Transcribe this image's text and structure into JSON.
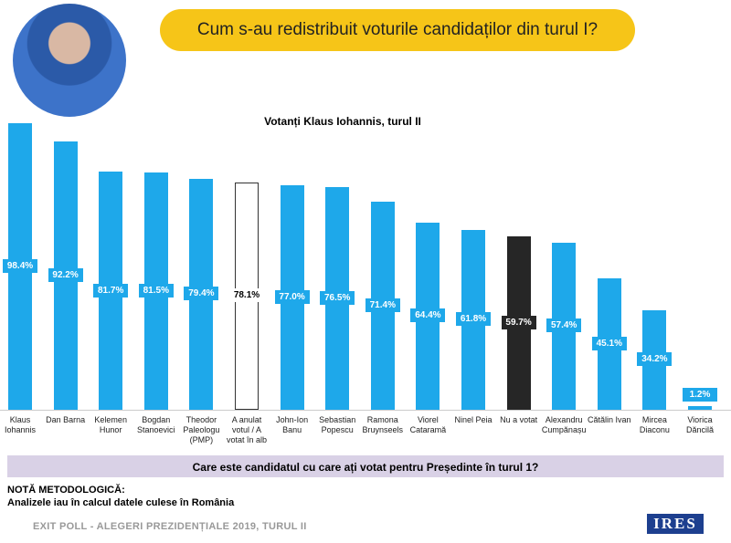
{
  "chart_data": {
    "type": "bar",
    "title": "Cum s-au redistribuit voturile candidaților din turul I?",
    "subtitle": "Votanți Klaus Iohannis, turul II",
    "x_label": "Care este candidatul cu care ați votat pentru Președinte în turul 1?",
    "categories": [
      "Klaus Iohannis",
      "Dan Barna",
      "Kelemen Hunor",
      "Bogdan Stanoevici",
      "Theodor Paleologu (PMP)",
      "A anulat votul / A votat în alb",
      "John-Ion Banu",
      "Sebastian Popescu",
      "Ramona Bruynseels",
      "Viorel Cataramă",
      "Ninel Peia",
      "Nu a votat",
      "Alexandru Cumpănașu",
      "Cătălin Ivan",
      "Mircea Diaconu",
      "Viorica Dăncilă"
    ],
    "values": [
      98.4,
      92.2,
      81.7,
      81.5,
      79.4,
      78.1,
      77.0,
      76.5,
      71.4,
      64.4,
      61.8,
      59.7,
      57.4,
      45.1,
      34.2,
      1.2
    ],
    "value_labels": [
      "98.4%",
      "92.2%",
      "81.7%",
      "81.5%",
      "79.4%",
      "78.1%",
      "77.0%",
      "76.5%",
      "71.4%",
      "64.4%",
      "61.8%",
      "59.7%",
      "57.4%",
      "45.1%",
      "34.2%",
      "1.2%"
    ],
    "colors": [
      "#1ea8ea",
      "#1ea8ea",
      "#1ea8ea",
      "#1ea8ea",
      "#1ea8ea",
      "#ffffff",
      "#1ea8ea",
      "#1ea8ea",
      "#1ea8ea",
      "#1ea8ea",
      "#1ea8ea",
      "#262626",
      "#1ea8ea",
      "#1ea8ea",
      "#1ea8ea",
      "#1ea8ea"
    ]
  },
  "note": {
    "title": "NOTĂ METODOLOGICĂ:",
    "text": "Analizele iau în calcul datele culese în România"
  },
  "footer": "EXIT POLL - ALEGERI PREZIDENȚIALE 2019, TURUL II",
  "logo": "IRES"
}
